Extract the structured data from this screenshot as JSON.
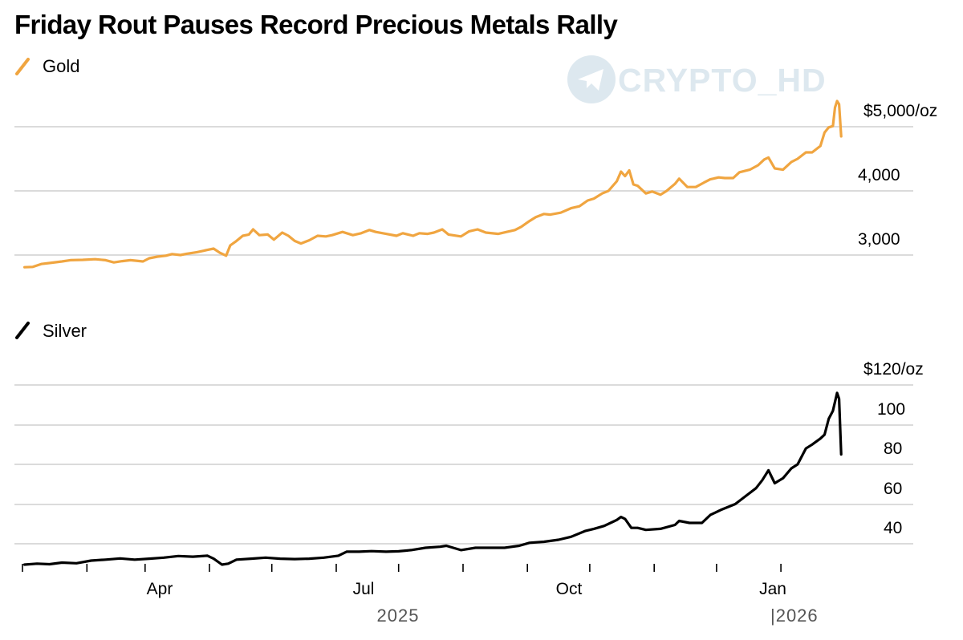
{
  "title": "Friday Rout Pauses Record Precious Metals Rally",
  "watermark": "CRYPTO_HD",
  "colors": {
    "gold": "#f0a540",
    "silver": "#000000",
    "grid": "#cfcfcf",
    "watermark": "#dde8ef"
  },
  "chart_data": [
    {
      "type": "line",
      "series": [
        {
          "name": "Gold"
        }
      ],
      "ylim": [
        2780,
        5500
      ],
      "y_ticks": [
        3000,
        4000,
        5000
      ],
      "y_tick_labels": [
        "3,000",
        "4,000",
        "$5,000/oz"
      ],
      "x_domain": [
        "2025-01-01",
        "2026-02-02"
      ],
      "points": [
        [
          "2025-01-02",
          2810
        ],
        [
          "2025-01-06",
          2815
        ],
        [
          "2025-01-10",
          2860
        ],
        [
          "2025-01-15",
          2880
        ],
        [
          "2025-01-20",
          2900
        ],
        [
          "2025-01-24",
          2920
        ],
        [
          "2025-01-30",
          2925
        ],
        [
          "2025-02-05",
          2935
        ],
        [
          "2025-02-10",
          2920
        ],
        [
          "2025-02-14",
          2885
        ],
        [
          "2025-02-18",
          2905
        ],
        [
          "2025-02-22",
          2920
        ],
        [
          "2025-02-28",
          2900
        ],
        [
          "2025-03-03",
          2950
        ],
        [
          "2025-03-07",
          2975
        ],
        [
          "2025-03-11",
          2990
        ],
        [
          "2025-03-14",
          3015
        ],
        [
          "2025-03-18",
          3000
        ],
        [
          "2025-03-21",
          3020
        ],
        [
          "2025-03-26",
          3045
        ],
        [
          "2025-03-31",
          3080
        ],
        [
          "2025-04-03",
          3100
        ],
        [
          "2025-04-06",
          3035
        ],
        [
          "2025-04-09",
          2990
        ],
        [
          "2025-04-11",
          3150
        ],
        [
          "2025-04-14",
          3220
        ],
        [
          "2025-04-17",
          3300
        ],
        [
          "2025-04-20",
          3320
        ],
        [
          "2025-04-22",
          3400
        ],
        [
          "2025-04-25",
          3310
        ],
        [
          "2025-04-29",
          3320
        ],
        [
          "2025-05-02",
          3240
        ],
        [
          "2025-05-06",
          3350
        ],
        [
          "2025-05-09",
          3300
        ],
        [
          "2025-05-12",
          3220
        ],
        [
          "2025-05-15",
          3180
        ],
        [
          "2025-05-19",
          3230
        ],
        [
          "2025-05-23",
          3300
        ],
        [
          "2025-05-27",
          3290
        ],
        [
          "2025-05-30",
          3310
        ],
        [
          "2025-06-04",
          3360
        ],
        [
          "2025-06-09",
          3310
        ],
        [
          "2025-06-13",
          3340
        ],
        [
          "2025-06-17",
          3390
        ],
        [
          "2025-06-20",
          3360
        ],
        [
          "2025-06-25",
          3330
        ],
        [
          "2025-06-30",
          3300
        ],
        [
          "2025-07-03",
          3340
        ],
        [
          "2025-07-08",
          3300
        ],
        [
          "2025-07-11",
          3340
        ],
        [
          "2025-07-15",
          3330
        ],
        [
          "2025-07-18",
          3350
        ],
        [
          "2025-07-22",
          3400
        ],
        [
          "2025-07-25",
          3320
        ],
        [
          "2025-07-31",
          3290
        ],
        [
          "2025-08-04",
          3370
        ],
        [
          "2025-08-08",
          3400
        ],
        [
          "2025-08-12",
          3350
        ],
        [
          "2025-08-18",
          3330
        ],
        [
          "2025-08-22",
          3360
        ],
        [
          "2025-08-26",
          3390
        ],
        [
          "2025-08-29",
          3440
        ],
        [
          "2025-09-02",
          3530
        ],
        [
          "2025-09-05",
          3590
        ],
        [
          "2025-09-09",
          3640
        ],
        [
          "2025-09-12",
          3630
        ],
        [
          "2025-09-17",
          3660
        ],
        [
          "2025-09-22",
          3730
        ],
        [
          "2025-09-26",
          3760
        ],
        [
          "2025-09-30",
          3850
        ],
        [
          "2025-10-03",
          3880
        ],
        [
          "2025-10-07",
          3960
        ],
        [
          "2025-10-10",
          4000
        ],
        [
          "2025-10-14",
          4150
        ],
        [
          "2025-10-16",
          4300
        ],
        [
          "2025-10-18",
          4230
        ],
        [
          "2025-10-20",
          4320
        ],
        [
          "2025-10-22",
          4100
        ],
        [
          "2025-10-24",
          4080
        ],
        [
          "2025-10-28",
          3960
        ],
        [
          "2025-10-31",
          3990
        ],
        [
          "2025-11-04",
          3940
        ],
        [
          "2025-11-07",
          4000
        ],
        [
          "2025-11-11",
          4110
        ],
        [
          "2025-11-13",
          4190
        ],
        [
          "2025-11-17",
          4060
        ],
        [
          "2025-11-21",
          4060
        ],
        [
          "2025-11-25",
          4130
        ],
        [
          "2025-11-28",
          4180
        ],
        [
          "2025-12-02",
          4210
        ],
        [
          "2025-12-05",
          4200
        ],
        [
          "2025-12-09",
          4200
        ],
        [
          "2025-12-12",
          4290
        ],
        [
          "2025-12-17",
          4330
        ],
        [
          "2025-12-21",
          4400
        ],
        [
          "2025-12-24",
          4490
        ],
        [
          "2025-12-26",
          4520
        ],
        [
          "2025-12-29",
          4350
        ],
        [
          "2026-01-02",
          4330
        ],
        [
          "2026-01-06",
          4450
        ],
        [
          "2026-01-09",
          4500
        ],
        [
          "2026-01-13",
          4600
        ],
        [
          "2026-01-16",
          4600
        ],
        [
          "2026-01-20",
          4700
        ],
        [
          "2026-01-22",
          4910
        ],
        [
          "2026-01-24",
          4990
        ],
        [
          "2026-01-26",
          5010
        ],
        [
          "2026-01-27",
          5300
        ],
        [
          "2026-01-28",
          5400
        ],
        [
          "2026-01-29",
          5350
        ],
        [
          "2026-01-30",
          4850
        ]
      ]
    },
    {
      "type": "line",
      "series": [
        {
          "name": "Silver"
        }
      ],
      "ylim": [
        25,
        125
      ],
      "y_ticks": [
        40,
        60,
        80,
        100,
        120
      ],
      "y_tick_labels": [
        "40",
        "60",
        "80",
        "100",
        "$120/oz"
      ],
      "x_domain": [
        "2025-01-01",
        "2026-02-02"
      ],
      "x_tick_labels": [
        "Apr",
        "Jul",
        "Oct",
        "Jan"
      ],
      "year_labels": [
        "2025",
        "|2026"
      ],
      "points": [
        [
          "2025-01-02",
          29.5
        ],
        [
          "2025-01-08",
          30.0
        ],
        [
          "2025-01-14",
          29.7
        ],
        [
          "2025-01-20",
          30.5
        ],
        [
          "2025-01-27",
          30.2
        ],
        [
          "2025-02-03",
          31.5
        ],
        [
          "2025-02-10",
          32.0
        ],
        [
          "2025-02-17",
          32.6
        ],
        [
          "2025-02-24",
          32.0
        ],
        [
          "2025-03-03",
          32.5
        ],
        [
          "2025-03-10",
          33.0
        ],
        [
          "2025-03-17",
          33.8
        ],
        [
          "2025-03-24",
          33.5
        ],
        [
          "2025-03-31",
          34.0
        ],
        [
          "2025-04-03",
          32.5
        ],
        [
          "2025-04-07",
          29.5
        ],
        [
          "2025-04-10",
          30.0
        ],
        [
          "2025-04-14",
          32.0
        ],
        [
          "2025-04-21",
          32.5
        ],
        [
          "2025-04-28",
          33.0
        ],
        [
          "2025-05-05",
          32.5
        ],
        [
          "2025-05-12",
          32.3
        ],
        [
          "2025-05-19",
          32.5
        ],
        [
          "2025-05-26",
          33.0
        ],
        [
          "2025-06-02",
          34.0
        ],
        [
          "2025-06-06",
          36.0
        ],
        [
          "2025-06-12",
          36.0
        ],
        [
          "2025-06-18",
          36.3
        ],
        [
          "2025-06-25",
          36.0
        ],
        [
          "2025-07-01",
          36.2
        ],
        [
          "2025-07-07",
          36.8
        ],
        [
          "2025-07-14",
          38.0
        ],
        [
          "2025-07-21",
          38.5
        ],
        [
          "2025-07-24",
          39.0
        ],
        [
          "2025-07-31",
          36.8
        ],
        [
          "2025-08-07",
          38.0
        ],
        [
          "2025-08-14",
          38.0
        ],
        [
          "2025-08-21",
          38.0
        ],
        [
          "2025-08-28",
          39.0
        ],
        [
          "2025-09-02",
          40.5
        ],
        [
          "2025-09-09",
          41.0
        ],
        [
          "2025-09-16",
          42.0
        ],
        [
          "2025-09-22",
          43.5
        ],
        [
          "2025-09-29",
          46.5
        ],
        [
          "2025-10-03",
          47.5
        ],
        [
          "2025-10-08",
          49.0
        ],
        [
          "2025-10-14",
          52.0
        ],
        [
          "2025-10-16",
          53.5
        ],
        [
          "2025-10-18",
          52.5
        ],
        [
          "2025-10-21",
          48.0
        ],
        [
          "2025-10-24",
          48.0
        ],
        [
          "2025-10-28",
          47.0
        ],
        [
          "2025-11-04",
          47.5
        ],
        [
          "2025-11-11",
          49.5
        ],
        [
          "2025-11-13",
          51.5
        ],
        [
          "2025-11-18",
          50.5
        ],
        [
          "2025-11-24",
          50.5
        ],
        [
          "2025-11-28",
          54.5
        ],
        [
          "2025-12-03",
          57.0
        ],
        [
          "2025-12-10",
          60.0
        ],
        [
          "2025-12-15",
          64.0
        ],
        [
          "2025-12-20",
          68.0
        ],
        [
          "2025-12-23",
          72.0
        ],
        [
          "2025-12-26",
          77.0
        ],
        [
          "2025-12-29",
          70.5
        ],
        [
          "2026-01-02",
          73.0
        ],
        [
          "2026-01-06",
          78.0
        ],
        [
          "2026-01-09",
          80.0
        ],
        [
          "2026-01-13",
          88.0
        ],
        [
          "2026-01-16",
          90.0
        ],
        [
          "2026-01-20",
          93.0
        ],
        [
          "2026-01-22",
          95.0
        ],
        [
          "2026-01-24",
          103.0
        ],
        [
          "2026-01-26",
          107.0
        ],
        [
          "2026-01-28",
          116.0
        ],
        [
          "2026-01-29",
          113.0
        ],
        [
          "2026-01-30",
          85.0
        ]
      ]
    }
  ]
}
